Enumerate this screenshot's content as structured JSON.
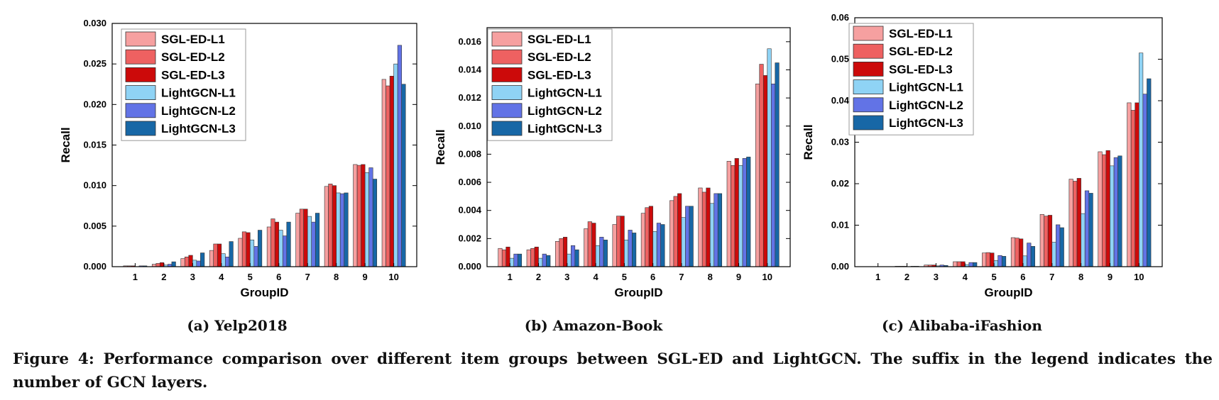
{
  "colors": {
    "SGL-ED-L1": "#f6a0a0",
    "SGL-ED-L2": "#ee6161",
    "SGL-ED-L3": "#cc0a0a",
    "LightGCN-L1": "#8fd3f5",
    "LightGCN-L2": "#6273e6",
    "LightGCN-L3": "#1767a6"
  },
  "chart_data": [
    {
      "type": "bar",
      "xlabel": "GroupID",
      "ylabel": "Recall",
      "categories": [
        "1",
        "2",
        "3",
        "4",
        "5",
        "6",
        "7",
        "8",
        "9",
        "10"
      ],
      "ylim": [
        0,
        0.03
      ],
      "yticks": [
        "0.000",
        "0.005",
        "0.010",
        "0.015",
        "0.020",
        "0.025",
        "0.030"
      ],
      "legend_position": "top-left",
      "caption": "(a) Yelp2018",
      "series": [
        {
          "name": "SGL-ED-L1",
          "values": [
            0.0001,
            0.0003,
            0.001,
            0.002,
            0.0035,
            0.0049,
            0.0066,
            0.0099,
            0.0126,
            0.0231
          ]
        },
        {
          "name": "SGL-ED-L2",
          "values": [
            0.0001,
            0.0004,
            0.0012,
            0.0028,
            0.0043,
            0.0059,
            0.0071,
            0.0102,
            0.0125,
            0.0223
          ]
        },
        {
          "name": "SGL-ED-L3",
          "values": [
            0.0001,
            0.0005,
            0.0014,
            0.0028,
            0.0042,
            0.0055,
            0.0071,
            0.01,
            0.0126,
            0.0235
          ]
        },
        {
          "name": "LightGCN-L1",
          "values": [
            0.0,
            0.0002,
            0.0008,
            0.0016,
            0.0033,
            0.0045,
            0.0062,
            0.0091,
            0.0116,
            0.025
          ]
        },
        {
          "name": "LightGCN-L2",
          "values": [
            0.0001,
            0.0003,
            0.0007,
            0.0012,
            0.0025,
            0.0038,
            0.0055,
            0.009,
            0.0122,
            0.0273
          ]
        },
        {
          "name": "LightGCN-L3",
          "values": [
            0.0001,
            0.0006,
            0.0017,
            0.0031,
            0.0045,
            0.0055,
            0.0066,
            0.0091,
            0.0108,
            0.0225
          ]
        }
      ]
    },
    {
      "type": "bar",
      "xlabel": "GroupID",
      "ylabel": "Recall",
      "categories": [
        "1",
        "2",
        "3",
        "4",
        "5",
        "6",
        "7",
        "8",
        "9",
        "10"
      ],
      "ylim": [
        0,
        0.017
      ],
      "yticks": [
        "0.000",
        "0.002",
        "0.004",
        "0.006",
        "0.008",
        "0.010",
        "0.012",
        "0.014",
        "0.016"
      ],
      "legend_position": "top-left",
      "caption": "(b) Amazon-Book",
      "series": [
        {
          "name": "SGL-ED-L1",
          "values": [
            0.0013,
            0.0012,
            0.0018,
            0.0027,
            0.003,
            0.0038,
            0.0047,
            0.0056,
            0.0075,
            0.013
          ]
        },
        {
          "name": "SGL-ED-L2",
          "values": [
            0.0012,
            0.0013,
            0.002,
            0.0032,
            0.0036,
            0.0042,
            0.005,
            0.0053,
            0.0072,
            0.0144
          ]
        },
        {
          "name": "SGL-ED-L3",
          "values": [
            0.0014,
            0.0014,
            0.0021,
            0.0031,
            0.0036,
            0.0043,
            0.0052,
            0.0056,
            0.0077,
            0.0136
          ]
        },
        {
          "name": "LightGCN-L1",
          "values": [
            0.0006,
            0.0006,
            0.0009,
            0.0015,
            0.0019,
            0.0025,
            0.0035,
            0.0045,
            0.0072,
            0.0155
          ]
        },
        {
          "name": "LightGCN-L2",
          "values": [
            0.0009,
            0.0009,
            0.0015,
            0.0021,
            0.0026,
            0.0031,
            0.0043,
            0.0052,
            0.0077,
            0.013
          ]
        },
        {
          "name": "LightGCN-L3",
          "values": [
            0.0009,
            0.0008,
            0.0012,
            0.0019,
            0.0024,
            0.003,
            0.0043,
            0.0052,
            0.0078,
            0.0145
          ]
        }
      ]
    },
    {
      "type": "bar",
      "xlabel": "GroupID",
      "ylabel": "Recall",
      "categories": [
        "1",
        "2",
        "3",
        "4",
        "5",
        "6",
        "7",
        "8",
        "9",
        "10"
      ],
      "ylim": [
        0,
        0.06
      ],
      "yticks": [
        "0.00",
        "0.01",
        "0.02",
        "0.03",
        "0.04",
        "0.05",
        "0.06"
      ],
      "legend_position": "top-left",
      "caption": "(c) Alibaba-iFashion",
      "series": [
        {
          "name": "SGL-ED-L1",
          "values": [
            0.0,
            0.0001,
            0.0004,
            0.0012,
            0.0033,
            0.007,
            0.0126,
            0.0211,
            0.0277,
            0.0395
          ]
        },
        {
          "name": "SGL-ED-L2",
          "values": [
            0.0,
            0.0001,
            0.0004,
            0.0012,
            0.0034,
            0.0069,
            0.0122,
            0.0206,
            0.027,
            0.0377
          ]
        },
        {
          "name": "SGL-ED-L3",
          "values": [
            0.0,
            0.0001,
            0.0004,
            0.0012,
            0.0033,
            0.0067,
            0.0124,
            0.0213,
            0.028,
            0.0395
          ]
        },
        {
          "name": "LightGCN-L1",
          "values": [
            0.0,
            0.0,
            0.0002,
            0.0005,
            0.0015,
            0.0026,
            0.0059,
            0.0128,
            0.0243,
            0.0515
          ]
        },
        {
          "name": "LightGCN-L2",
          "values": [
            0.0,
            0.0001,
            0.0004,
            0.001,
            0.0027,
            0.0057,
            0.0101,
            0.0183,
            0.0263,
            0.0416
          ]
        },
        {
          "name": "LightGCN-L3",
          "values": [
            0.0,
            0.0001,
            0.0003,
            0.001,
            0.0025,
            0.0049,
            0.0094,
            0.0177,
            0.0267,
            0.0453
          ]
        }
      ]
    }
  ],
  "figure_caption": "Figure 4: Performance comparison over different item groups between SGL-ED and LightGCN. The suffix in the legend indicates the number of GCN layers."
}
